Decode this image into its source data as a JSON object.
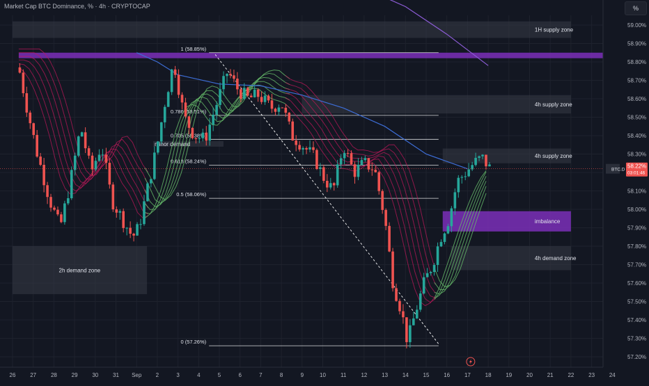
{
  "header": {
    "title": "Market Cap BTC Dominance, % · 4h · CRYPTOCAP"
  },
  "toolbar": {
    "percent_label": "%"
  },
  "price_tag": {
    "symbol": "BTC.D",
    "value": "58.22%",
    "countdown": "03:01:46"
  },
  "colors": {
    "background": "#131722",
    "up": "#26a69a",
    "down": "#ef5350",
    "zone_grey": "#363a45",
    "zone_purple": "#7b2fb8",
    "ema_blue": "#3d6dd6",
    "ema_purple": "#8c5cd6",
    "ribbon_red": "#c2185b",
    "ribbon_green": "#66bb6a"
  },
  "flash_icon": "lightning-icon",
  "chart_data": {
    "type": "candlestick",
    "title": "Market Cap BTC Dominance, % · 4h · CRYPTOCAP",
    "y_unit": "%",
    "ylim": [
      57.17,
      59.1
    ],
    "grid": true,
    "x_ticks": [
      "26",
      "27",
      "28",
      "29",
      "30",
      "31",
      "Sep",
      "2",
      "3",
      "4",
      "5",
      "6",
      "7",
      "8",
      "9",
      "10",
      "11",
      "12",
      "13",
      "14",
      "15",
      "16",
      "17",
      "18",
      "19",
      "20",
      "21",
      "22",
      "23",
      "24"
    ],
    "y_ticks": [
      "59.00%",
      "58.90%",
      "58.80%",
      "58.70%",
      "58.60%",
      "58.50%",
      "58.40%",
      "58.30%",
      "58.20%",
      "58.10%",
      "58.00%",
      "57.90%",
      "57.80%",
      "57.70%",
      "57.60%",
      "57.50%",
      "57.40%",
      "57.30%",
      "57.20%"
    ],
    "zones": [
      {
        "label": "1H supply zone",
        "kind": "grey",
        "from_day": 0,
        "to_day": 27,
        "low": 58.93,
        "high": 59.02
      },
      {
        "label": "",
        "kind": "purple",
        "from_day": 0.3,
        "to_day": 29,
        "low": 58.82,
        "high": 58.85
      },
      {
        "label": "4h supply zone",
        "kind": "grey",
        "from_day": 14,
        "to_day": 27,
        "low": 58.52,
        "high": 58.62
      },
      {
        "label": "4h supply zone",
        "kind": "grey",
        "from_day": 20.8,
        "to_day": 27,
        "low": 58.25,
        "high": 58.33
      },
      {
        "label": "imbalance",
        "kind": "purple",
        "from_day": 20.8,
        "to_day": 27,
        "low": 57.88,
        "high": 57.99
      },
      {
        "label": "4h demand zone",
        "kind": "grey",
        "from_day": 21.2,
        "to_day": 27,
        "low": 57.67,
        "high": 57.8
      },
      {
        "label": "2h demand zone",
        "kind": "grey",
        "from_day": 0,
        "to_day": 6.5,
        "low": 57.54,
        "high": 57.8
      },
      {
        "label": "minor demand",
        "kind": "grey",
        "from_day": 6.8,
        "to_day": 10.2,
        "low": 58.34,
        "high": 58.37
      }
    ],
    "fib_levels": [
      {
        "label": "1 (58.85%)",
        "value": 58.85
      },
      {
        "label": "0.786 (58.51%)",
        "value": 58.51
      },
      {
        "label": "0.705 (58.38%)",
        "value": 58.38
      },
      {
        "label": "0.618 (58.24%)",
        "value": 58.24
      },
      {
        "label": "0.5 (58.06%)",
        "value": 58.06
      },
      {
        "label": "0 (57.26%)",
        "value": 57.26
      }
    ],
    "fib_from_day": 9.5,
    "fib_to_day": 20.6,
    "trend_line": {
      "from_day": 9.8,
      "from_value": 58.84,
      "to_day": 20.6,
      "to_value": 57.27
    },
    "key_points": [
      {
        "day": 0.3,
        "value": 58.77
      },
      {
        "day": 0.7,
        "value": 58.55
      },
      {
        "day": 1.2,
        "value": 58.3
      },
      {
        "day": 1.8,
        "value": 58.05
      },
      {
        "day": 2.3,
        "value": 57.9
      },
      {
        "day": 2.8,
        "value": 58.15
      },
      {
        "day": 3.3,
        "value": 58.45
      },
      {
        "day": 3.8,
        "value": 58.2
      },
      {
        "day": 4.3,
        "value": 58.35
      },
      {
        "day": 4.8,
        "value": 58.05
      },
      {
        "day": 5.3,
        "value": 57.95
      },
      {
        "day": 5.8,
        "value": 57.85
      },
      {
        "day": 6.1,
        "value": 57.9
      },
      {
        "day": 6.5,
        "value": 58.1
      },
      {
        "day": 7.0,
        "value": 58.35
      },
      {
        "day": 7.4,
        "value": 58.6
      },
      {
        "day": 7.8,
        "value": 58.8
      },
      {
        "day": 8.3,
        "value": 58.5
      },
      {
        "day": 8.8,
        "value": 58.4
      },
      {
        "day": 9.3,
        "value": 58.38
      },
      {
        "day": 9.8,
        "value": 58.55
      },
      {
        "day": 10.4,
        "value": 58.75
      },
      {
        "day": 10.9,
        "value": 58.65
      },
      {
        "day": 11.4,
        "value": 58.6
      },
      {
        "day": 11.9,
        "value": 58.62
      },
      {
        "day": 12.5,
        "value": 58.55
      },
      {
        "day": 13.0,
        "value": 58.58
      },
      {
        "day": 13.5,
        "value": 58.4
      },
      {
        "day": 14.0,
        "value": 58.35
      },
      {
        "day": 14.6,
        "value": 58.28
      },
      {
        "day": 15.0,
        "value": 58.18
      },
      {
        "day": 15.5,
        "value": 58.1
      },
      {
        "day": 16.0,
        "value": 58.35
      },
      {
        "day": 16.5,
        "value": 58.2
      },
      {
        "day": 17.0,
        "value": 58.25
      },
      {
        "day": 17.5,
        "value": 58.22
      },
      {
        "day": 18.0,
        "value": 57.95
      },
      {
        "day": 18.4,
        "value": 57.6
      },
      {
        "day": 18.8,
        "value": 57.45
      },
      {
        "day": 19.1,
        "value": 57.28
      },
      {
        "day": 19.5,
        "value": 57.45
      },
      {
        "day": 19.9,
        "value": 57.6
      },
      {
        "day": 20.3,
        "value": 57.7
      },
      {
        "day": 20.7,
        "value": 57.85
      },
      {
        "day": 21.1,
        "value": 57.95
      },
      {
        "day": 21.5,
        "value": 58.15
      },
      {
        "day": 21.9,
        "value": 58.2
      },
      {
        "day": 22.3,
        "value": 58.25
      },
      {
        "day": 22.7,
        "value": 58.28
      },
      {
        "day": 23.1,
        "value": 58.22
      }
    ],
    "ema_blue": [
      {
        "day": 6,
        "value": 58.85
      },
      {
        "day": 7,
        "value": 58.8
      },
      {
        "day": 8,
        "value": 58.73
      },
      {
        "day": 10,
        "value": 58.68
      },
      {
        "day": 12,
        "value": 58.67
      },
      {
        "day": 14,
        "value": 58.62
      },
      {
        "day": 16,
        "value": 58.55
      },
      {
        "day": 18,
        "value": 58.45
      },
      {
        "day": 20,
        "value": 58.3
      },
      {
        "day": 22,
        "value": 58.22
      }
    ],
    "ema_purple": [
      {
        "day": 17,
        "value": 59.2
      },
      {
        "day": 19,
        "value": 59.1
      },
      {
        "day": 21,
        "value": 58.95
      },
      {
        "day": 23,
        "value": 58.78
      }
    ]
  }
}
